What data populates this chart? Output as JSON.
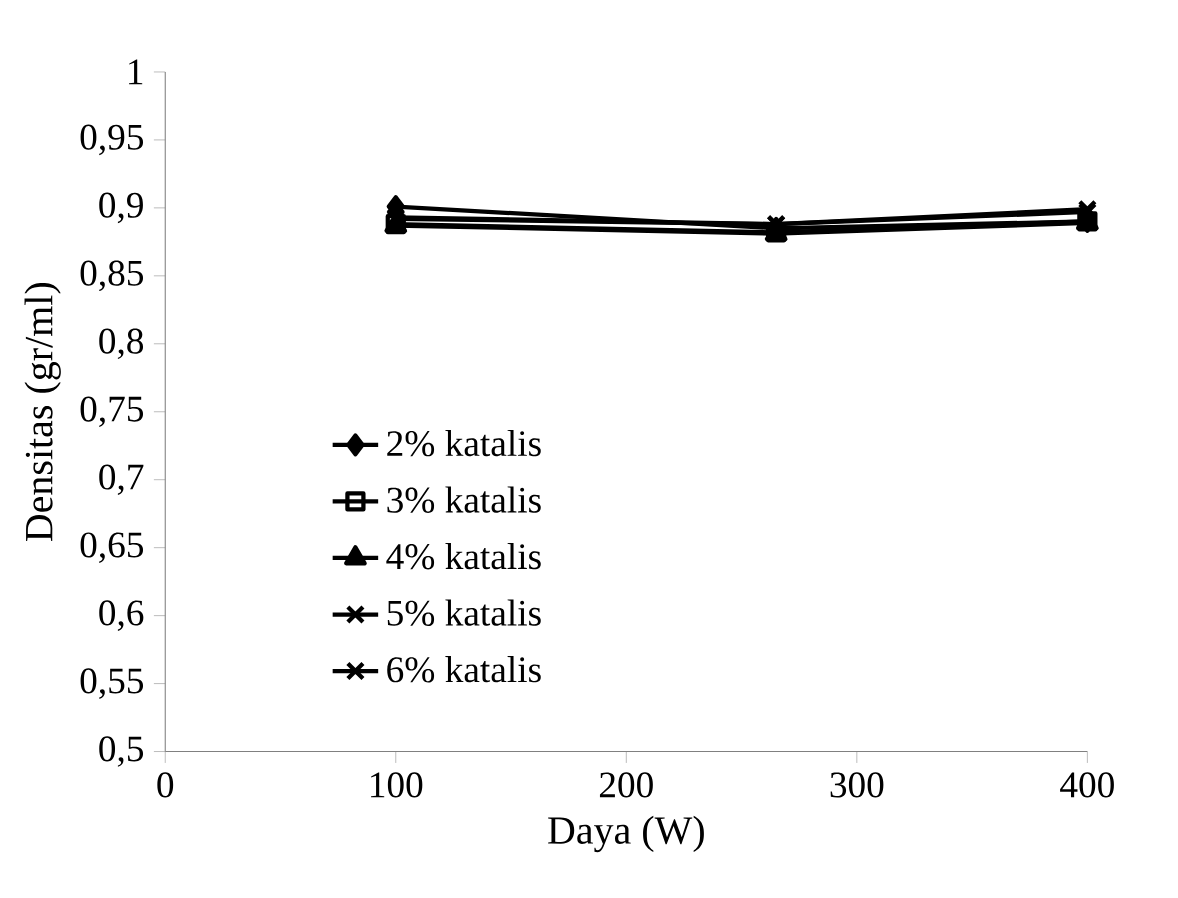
{
  "chart_data": {
    "type": "line",
    "xlabel": "Daya (W)",
    "ylabel": "Densitas (gr/ml)",
    "x": [
      100,
      265,
      400
    ],
    "series": [
      {
        "name": "2% katalis",
        "color": "#000000",
        "marker": "diamond",
        "values": [
          0.901,
          0.885,
          0.89
        ]
      },
      {
        "name": "3% katalis",
        "color": "#000000",
        "marker": "square",
        "values": [
          0.888,
          0.882,
          0.89
        ]
      },
      {
        "name": "4% katalis",
        "color": "#000000",
        "marker": "triangle",
        "values": [
          0.887,
          0.881,
          0.889
        ]
      },
      {
        "name": "5% katalis",
        "color": "#000000",
        "marker": "cross",
        "values": [
          0.892,
          0.888,
          0.897
        ]
      },
      {
        "name": "6% katalis",
        "color": "#000000",
        "marker": "cross",
        "values": [
          0.893,
          0.888,
          0.899
        ]
      }
    ],
    "xlim": [
      0,
      400
    ],
    "xticks": [
      0,
      100,
      200,
      300,
      400
    ],
    "ylim": [
      0.5,
      1
    ],
    "yticks": [
      {
        "value": 0.5,
        "label": "0,5"
      },
      {
        "value": 0.55,
        "label": "0,55"
      },
      {
        "value": 0.6,
        "label": "0,6"
      },
      {
        "value": 0.65,
        "label": "0,65"
      },
      {
        "value": 0.7,
        "label": "0,7"
      },
      {
        "value": 0.75,
        "label": "0,75"
      },
      {
        "value": 0.8,
        "label": "0,8"
      },
      {
        "value": 0.85,
        "label": "0,85"
      },
      {
        "value": 0.9,
        "label": "0,9"
      },
      {
        "value": 0.95,
        "label": "0,95"
      },
      {
        "value": 1,
        "label": "1"
      }
    ],
    "legend": "bottom left",
    "grid": false,
    "line_style": "solid"
  }
}
